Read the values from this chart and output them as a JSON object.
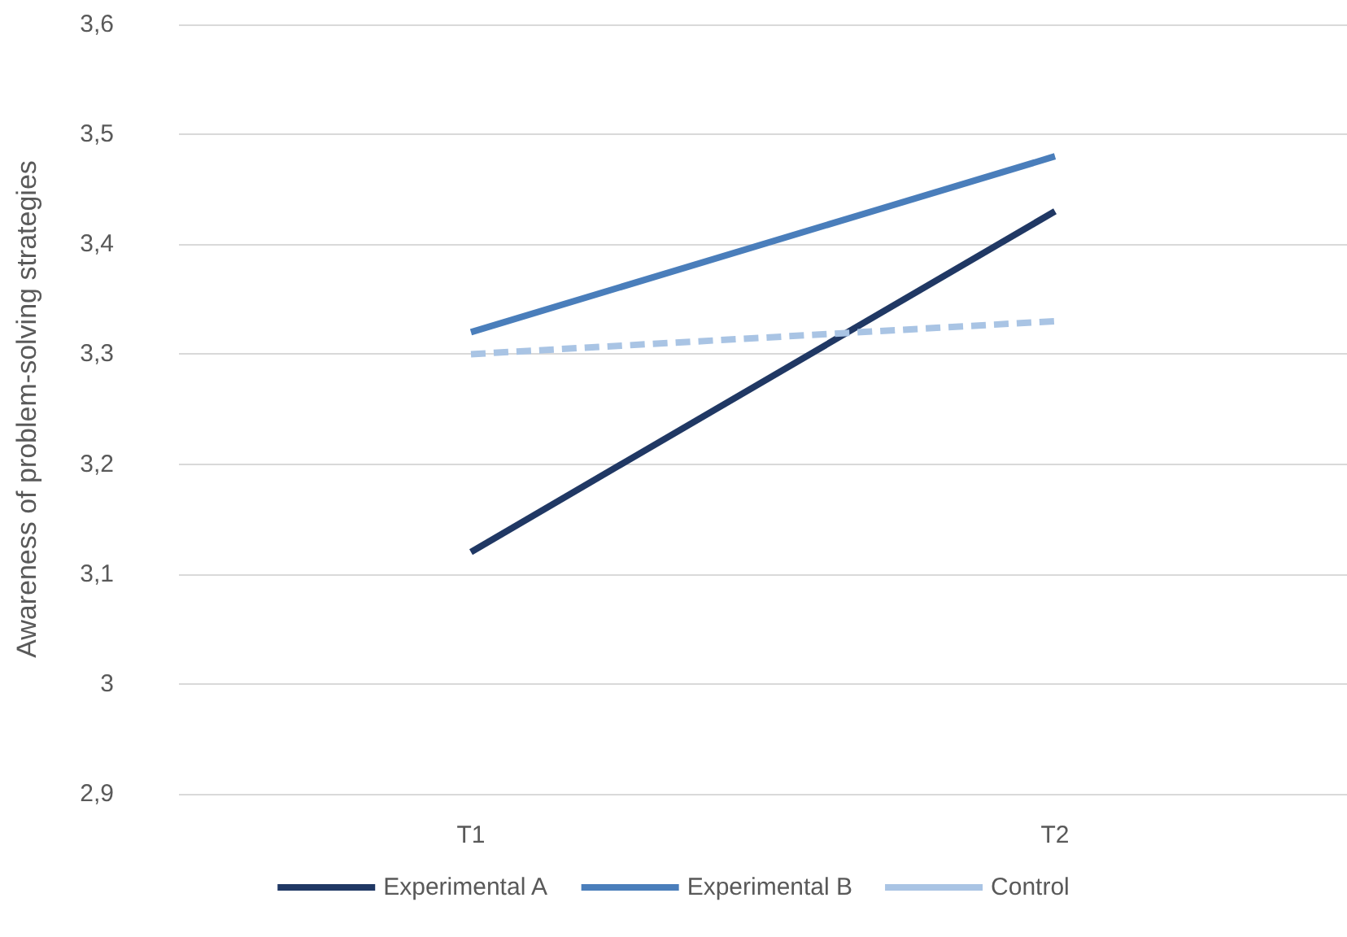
{
  "chart_data": {
    "type": "line",
    "ylabel": "Awareness of problem-solving strategies",
    "categories": [
      "T1",
      "T2"
    ],
    "series": [
      {
        "name": "Experimental A",
        "color": "#203864",
        "values": [
          3.12,
          3.43
        ]
      },
      {
        "name": "Experimental B",
        "color": "#4a7ebb",
        "values": [
          3.32,
          3.48
        ]
      },
      {
        "name": "Control",
        "color": "#a9c4e4",
        "values": [
          3.3,
          3.33
        ],
        "line_style": "dashed"
      }
    ],
    "ylim": [
      2.9,
      3.6
    ],
    "yticks": [
      {
        "value": 2.9,
        "label": "2,9"
      },
      {
        "value": 3,
        "label": "3"
      },
      {
        "value": 3.1,
        "label": "3,1"
      },
      {
        "value": 3.2,
        "label": "3,2"
      },
      {
        "value": 3.3,
        "label": "3,3"
      },
      {
        "value": 3.4,
        "label": "3,4"
      },
      {
        "value": 3.5,
        "label": "3,5"
      },
      {
        "value": 3.6,
        "label": "3,6"
      }
    ],
    "grid": "y",
    "legend": "bottom",
    "marker": "none",
    "line_style": "solid"
  }
}
